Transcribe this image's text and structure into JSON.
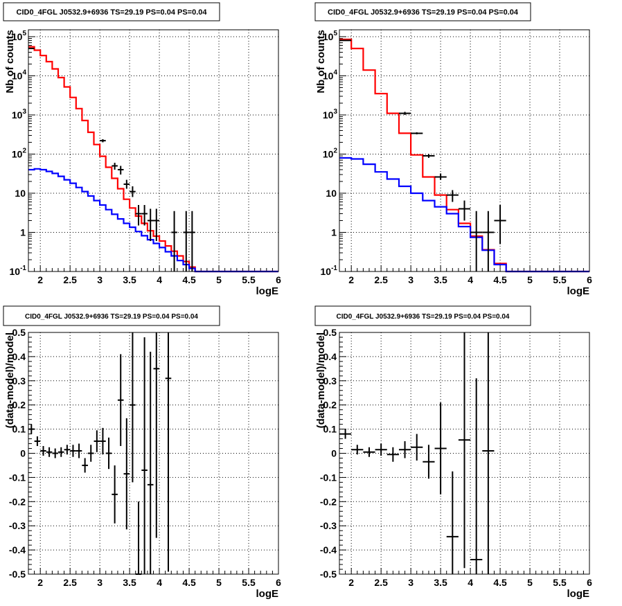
{
  "chart_data": [
    {
      "type": "step-histogram",
      "title": "CID0_4FGL J0532.9+6936 TS=29.19 PS=0.04 PS=0.04",
      "xlabel": "logE",
      "ylabel": "Nb of counts",
      "xlim": [
        1.8,
        6.0
      ],
      "ylim": [
        0.1,
        150000
      ],
      "yscale": "log",
      "grid": true,
      "x_ticks": [
        "2",
        "2.5",
        "3",
        "3.5",
        "4",
        "4.5",
        "5",
        "5.5",
        "6"
      ],
      "y_ticks": [
        "10^-1",
        "1",
        "10",
        "10^2",
        "10^3",
        "10^4",
        "10^5"
      ],
      "series": [
        {
          "color": "#ff0000",
          "bin_edges": [
            1.8,
            1.9,
            2.0,
            2.1,
            2.2,
            2.3,
            2.4,
            2.5,
            2.6,
            2.7,
            2.8,
            2.9,
            3.0,
            3.1,
            3.2,
            3.3,
            3.4,
            3.5,
            3.6,
            3.7,
            3.8,
            3.9,
            4.0,
            4.1,
            4.2,
            4.3,
            4.4,
            4.5,
            4.6,
            4.7,
            4.8,
            4.9,
            5.0,
            5.1,
            5.2,
            5.3,
            5.4,
            5.5,
            5.6,
            5.7,
            5.8,
            5.9,
            6.0
          ],
          "values": [
            55000,
            45000,
            33000,
            23000,
            15000,
            9000,
            5200,
            2800,
            1450,
            720,
            360,
            175,
            88,
            46,
            24,
            13,
            7,
            4.2,
            2.6,
            1.7,
            1.1,
            0.8,
            0.6,
            0.45,
            0.33,
            0.25,
            0.18,
            0.13,
            0.1,
            0.1,
            0.1,
            0.1,
            0.1,
            0.1,
            0.1,
            0.1,
            0.1,
            0.1,
            0.1,
            0.1,
            0.1,
            0.1
          ]
        },
        {
          "color": "#0000ff",
          "bin_edges": [
            1.8,
            1.9,
            2.0,
            2.1,
            2.2,
            2.3,
            2.4,
            2.5,
            2.6,
            2.7,
            2.8,
            2.9,
            3.0,
            3.1,
            3.2,
            3.3,
            3.4,
            3.5,
            3.6,
            3.7,
            3.8,
            3.9,
            4.0,
            4.1,
            4.2,
            4.3,
            4.4,
            4.5,
            4.6,
            4.7,
            4.8,
            4.9,
            5.0,
            5.1,
            5.2,
            5.3,
            5.4,
            5.5,
            5.6,
            5.7,
            5.8,
            5.9,
            6.0
          ],
          "values": [
            40,
            42,
            40,
            36,
            32,
            27,
            22,
            18,
            14,
            11,
            8.5,
            6.5,
            5.0,
            3.8,
            2.9,
            2.2,
            1.7,
            1.35,
            1.05,
            0.82,
            0.65,
            0.52,
            0.41,
            0.32,
            0.25,
            0.19,
            0.15,
            0.12,
            0.1,
            0.1,
            0.1,
            0.1,
            0.1,
            0.1,
            0.1,
            0.1,
            0.1,
            0.1,
            0.1,
            0.1,
            0.1,
            0.1
          ]
        }
      ],
      "points": {
        "color": "#000000",
        "x": [
          1.85,
          3.05,
          3.25,
          3.35,
          3.45,
          3.55,
          3.65,
          3.75,
          3.85,
          3.95,
          4.25,
          4.45,
          4.55
        ],
        "y": [
          50000,
          220,
          50,
          40,
          17,
          11,
          3,
          3,
          2,
          2,
          1,
          1,
          1
        ],
        "xerr": [
          0.05,
          0.05,
          0.05,
          0.05,
          0.05,
          0.05,
          0.05,
          0.05,
          0.05,
          0.05,
          0.05,
          0.05,
          0.05
        ],
        "ylo": [
          48000,
          200,
          40,
          30,
          13,
          8,
          1.5,
          1.5,
          0.6,
          0.6,
          0.1,
          0.1,
          0.1
        ],
        "yhi": [
          52000,
          240,
          60,
          50,
          22,
          15,
          5,
          5,
          4,
          4,
          3.5,
          3.5,
          3.5
        ]
      }
    },
    {
      "type": "step-histogram",
      "title": "CID0_4FGL J0532.9+6936 TS=29.19 PS=0.04 PS=0.04",
      "xlabel": "logE",
      "ylabel": "Nb of counts",
      "xlim": [
        1.8,
        6.0
      ],
      "ylim": [
        0.1,
        150000
      ],
      "yscale": "log",
      "grid": true,
      "x_ticks": [
        "2",
        "2.5",
        "3",
        "3.5",
        "4",
        "4.5",
        "5",
        "5.5",
        "6"
      ],
      "y_ticks": [
        "10^-1",
        "1",
        "10",
        "10^2",
        "10^3",
        "10^4",
        "10^5"
      ],
      "series": [
        {
          "color": "#ff0000",
          "bin_edges": [
            1.8,
            2.0,
            2.2,
            2.4,
            2.6,
            2.8,
            3.0,
            3.2,
            3.4,
            3.6,
            3.8,
            4.0,
            4.2,
            4.4,
            4.6,
            4.8,
            5.0,
            5.2,
            5.4,
            5.6,
            5.8,
            6.0
          ],
          "values": [
            85000,
            50000,
            14000,
            3500,
            1100,
            340,
            95,
            26,
            9,
            3.8,
            1.7,
            0.8,
            0.36,
            0.16,
            0.1,
            0.1,
            0.1,
            0.1,
            0.1,
            0.1,
            0.1
          ]
        },
        {
          "color": "#0000ff",
          "bin_edges": [
            1.8,
            2.0,
            2.2,
            2.4,
            2.6,
            2.8,
            3.0,
            3.2,
            3.4,
            3.6,
            3.8,
            4.0,
            4.2,
            4.4,
            4.6,
            4.8,
            5.0,
            5.2,
            5.4,
            5.6,
            5.8,
            6.0
          ],
          "values": [
            80,
            75,
            55,
            35,
            23,
            15,
            10,
            6.5,
            4.5,
            3.0,
            1.4,
            0.75,
            0.35,
            0.15,
            0.1,
            0.1,
            0.1,
            0.1,
            0.1,
            0.1,
            0.1
          ]
        }
      ],
      "points": {
        "color": "#000000",
        "x": [
          1.9,
          2.9,
          3.1,
          3.3,
          3.5,
          3.7,
          3.9,
          4.1,
          4.3,
          4.5
        ],
        "y": [
          80000,
          1100,
          340,
          90,
          26,
          9,
          4,
          1,
          1,
          2
        ],
        "xerr": [
          0.1,
          0.1,
          0.1,
          0.1,
          0.1,
          0.1,
          0.1,
          0.1,
          0.1,
          0.1
        ],
        "ylo": [
          78000,
          1000,
          320,
          80,
          22,
          6,
          2,
          0.1,
          0.1,
          0.5
        ],
        "yhi": [
          82000,
          1200,
          360,
          100,
          32,
          12,
          6.5,
          3.5,
          3.5,
          5
        ]
      }
    },
    {
      "type": "scatter",
      "title": "CID0_4FGL J0532.9+6936 TS=29.19 PS=0.04 PS=0.04",
      "xlabel": "logE",
      "ylabel": "(data-model)/model",
      "xlim": [
        1.8,
        6.0
      ],
      "ylim": [
        -0.5,
        0.5
      ],
      "grid": true,
      "x_ticks": [
        "2",
        "2.5",
        "3",
        "3.5",
        "4",
        "4.5",
        "5",
        "5.5",
        "6"
      ],
      "y_ticks": [
        "-0.5",
        "-0.4",
        "-0.3",
        "-0.2",
        "-0.1",
        "0",
        "0.1",
        "0.2",
        "0.3",
        "0.4",
        "0.5"
      ],
      "points": {
        "color": "#000000",
        "x": [
          1.85,
          1.95,
          2.05,
          2.15,
          2.25,
          2.35,
          2.45,
          2.55,
          2.65,
          2.75,
          2.85,
          2.95,
          3.05,
          3.15,
          3.25,
          3.35,
          3.45,
          3.55,
          3.65,
          3.75,
          3.85,
          3.95,
          4.15
        ],
        "y": [
          0.1,
          0.05,
          0.01,
          0.005,
          0.0,
          0.005,
          0.015,
          0.01,
          0.01,
          -0.05,
          0.0,
          0.05,
          0.05,
          0.0,
          -0.17,
          0.22,
          -0.085,
          0.2,
          -0.5,
          -0.07,
          -0.13,
          0.35,
          0.31
        ],
        "xerr": [
          0.05,
          0.05,
          0.05,
          0.05,
          0.05,
          0.05,
          0.05,
          0.05,
          0.05,
          0.05,
          0.05,
          0.05,
          0.05,
          0.05,
          0.05,
          0.05,
          0.05,
          0.05,
          0.05,
          0.05,
          0.05,
          0.05,
          0.05
        ],
        "yerr": [
          0.02,
          0.02,
          0.02,
          0.02,
          0.02,
          0.02,
          0.02,
          0.025,
          0.03,
          0.03,
          0.035,
          0.045,
          0.055,
          0.065,
          0.12,
          0.19,
          0.23,
          0.32,
          0.3,
          0.55,
          0.55,
          0.7,
          0.8
        ]
      }
    },
    {
      "type": "scatter",
      "title": "CID0_4FGL J0532.9+6936 TS=29.19 PS=0.04 PS=0.04",
      "xlabel": "logE",
      "ylabel": "(data-model)/model",
      "xlim": [
        1.8,
        6.0
      ],
      "ylim": [
        -0.5,
        0.5
      ],
      "grid": true,
      "x_ticks": [
        "2",
        "2.5",
        "3",
        "3.5",
        "4",
        "4.5",
        "5",
        "5.5",
        "6"
      ],
      "y_ticks": [
        "-0.5",
        "-0.4",
        "-0.3",
        "-0.2",
        "-0.1",
        "0",
        "0.1",
        "0.2",
        "0.3",
        "0.4",
        "0.5"
      ],
      "points": {
        "color": "#000000",
        "x": [
          1.9,
          2.1,
          2.3,
          2.5,
          2.7,
          2.9,
          3.1,
          3.3,
          3.5,
          3.7,
          3.9,
          4.1,
          4.3
        ],
        "y": [
          0.08,
          0.015,
          0.005,
          0.015,
          -0.005,
          0.015,
          0.025,
          -0.035,
          0.02,
          -0.345,
          0.055,
          -0.44,
          0.01
        ],
        "xerr": [
          0.1,
          0.1,
          0.1,
          0.1,
          0.1,
          0.1,
          0.1,
          0.1,
          0.1,
          0.1,
          0.1,
          0.1,
          0.1
        ],
        "yerr": [
          0.02,
          0.02,
          0.02,
          0.025,
          0.03,
          0.035,
          0.055,
          0.07,
          0.19,
          0.27,
          0.53,
          0.75,
          0.8
        ]
      }
    }
  ]
}
